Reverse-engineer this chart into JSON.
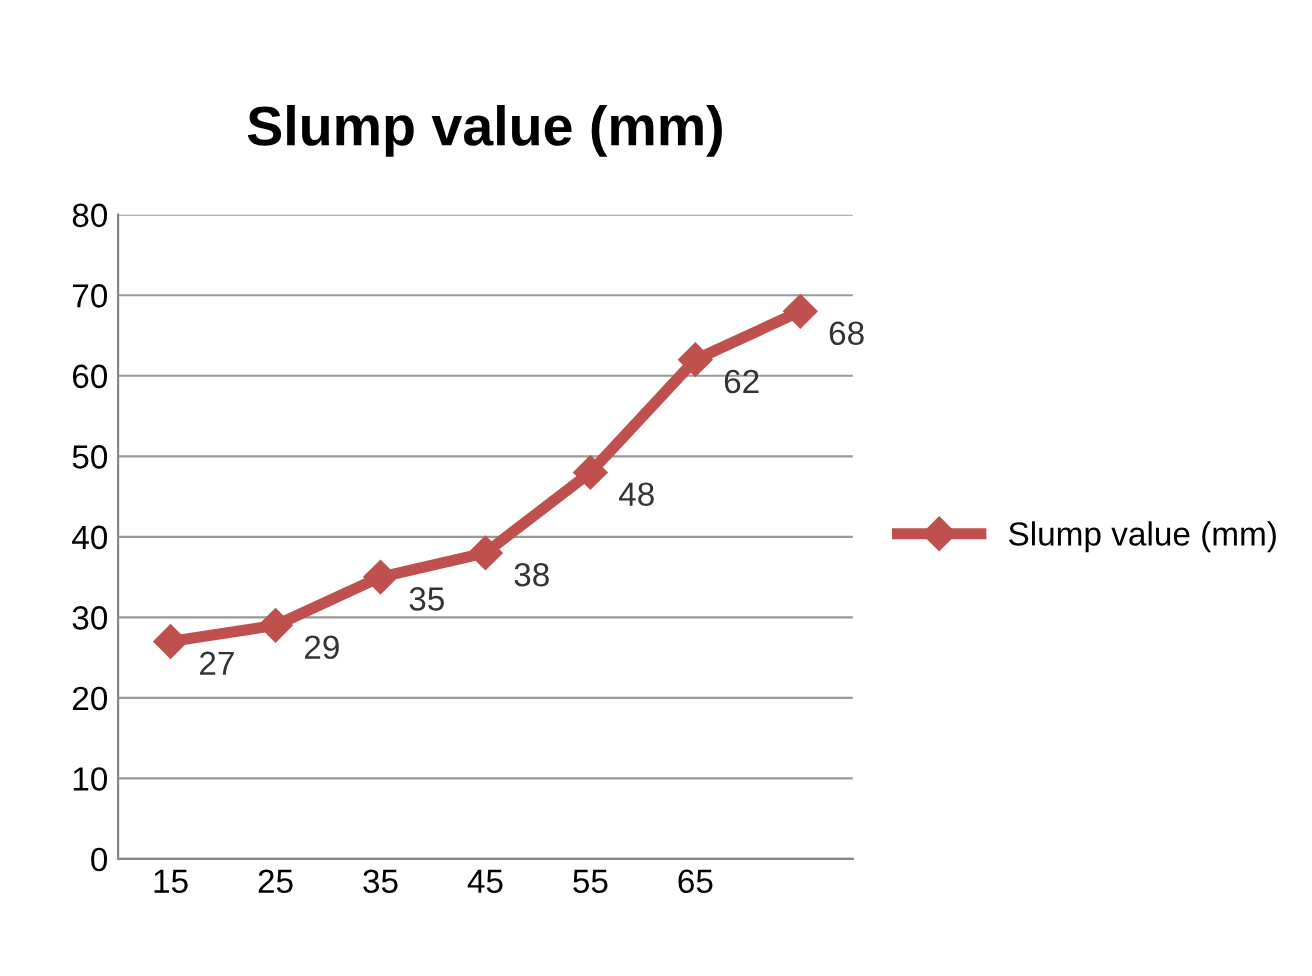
{
  "chart_data": {
    "type": "line",
    "title": "Slump value (mm)",
    "categories": [
      "15",
      "25",
      "35",
      "45",
      "55",
      "65",
      null
    ],
    "series": [
      {
        "name": "Slump value (mm)",
        "color": "#c0504d",
        "values": [
          27,
          29,
          35,
          38,
          48,
          62,
          68
        ]
      }
    ],
    "ylim": [
      0,
      80
    ],
    "yticks": [
      0,
      10,
      20,
      30,
      40,
      50,
      60,
      70,
      80
    ],
    "grid": "y",
    "legend": "right",
    "marker": "diamond",
    "line_style": "solid",
    "data_labels": true
  }
}
